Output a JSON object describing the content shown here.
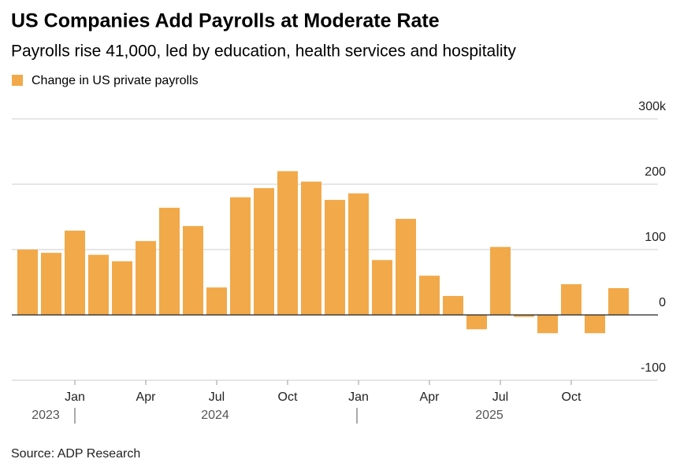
{
  "chart_data": {
    "type": "bar",
    "title": "US Companies Add Payrolls at Moderate Rate",
    "subtitle": "Payrolls rise 41,000, led by education, health services and hospitality",
    "source": "Source: ADP Research",
    "categories": [
      null,
      null,
      "Jan",
      null,
      null,
      "Apr",
      null,
      null,
      "Jul",
      null,
      null,
      "Oct",
      null,
      null,
      "Jan",
      null,
      null,
      "Apr",
      null,
      null,
      "Jul",
      null,
      null,
      "Oct",
      null,
      null
    ],
    "year_labels": [
      "2023",
      "2024",
      "2025"
    ],
    "series": [
      {
        "name": "Change in US private payrolls",
        "color": "#f2a94a",
        "values": [
          100,
          95,
          129,
          92,
          82,
          113,
          164,
          136,
          42,
          180,
          194,
          220,
          204,
          176,
          186,
          84,
          147,
          60,
          29,
          -22,
          104,
          -3,
          -28,
          47,
          -28,
          41
        ]
      }
    ],
    "ylim": [
      -100,
      300
    ],
    "yticks": [
      -100,
      0,
      100,
      200,
      {
        "value": 300,
        "label": "300k"
      }
    ],
    "grid": true
  }
}
